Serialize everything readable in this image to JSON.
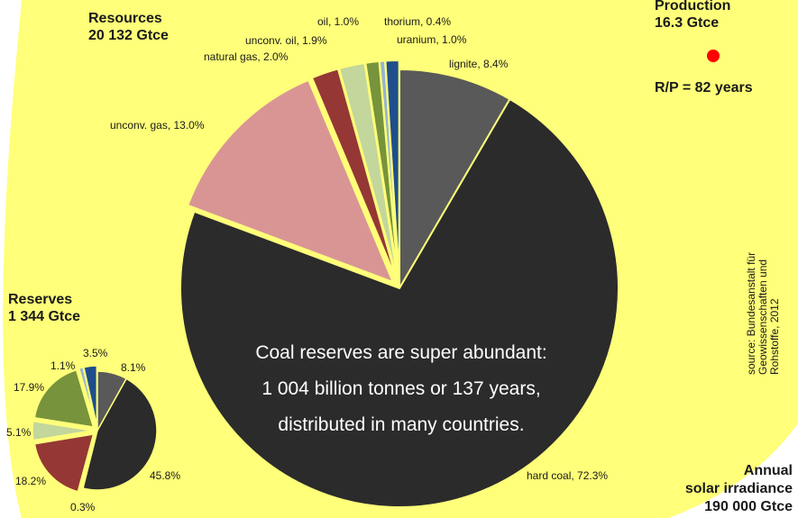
{
  "colors": {
    "background": "#ffff7a",
    "text": "#1a1a1a",
    "dot": "#ff0000"
  },
  "resources": {
    "title": "Resources",
    "total": "20 132 Gtce"
  },
  "reserves": {
    "title": "Reserves",
    "total": "1 344 Gtce"
  },
  "production": {
    "title": "Production",
    "total": "16.3 Gtce",
    "rp": "R/P = 82 years"
  },
  "irradiance": {
    "line1": "Annual",
    "line2": "solar irradiance",
    "line3": "190 000 Gtce"
  },
  "source": {
    "line1": "source: Bundesanstalt für",
    "line2": "Geowissenschaften und",
    "line3": "Rohstoffe, 2012"
  },
  "note": {
    "line1": "Coal reserves are super abundant:",
    "line2": "1 004 billion tonnes or 137 years,",
    "line3": "distributed in many countries."
  },
  "chart_data": [
    {
      "type": "pie",
      "title": "Resources 20 132 Gtce",
      "unit": "%",
      "slices": [
        {
          "label": "lignite",
          "display": "lignite, 8.4%",
          "value": 8.4,
          "color": "#595959",
          "exploded": false
        },
        {
          "label": "hard coal",
          "display": "hard coal, 72.3%",
          "value": 72.3,
          "color": "#2b2b2b",
          "exploded": false
        },
        {
          "label": "unconv. gas",
          "display": "unconv. gas, 13.0%",
          "value": 13.0,
          "color": "#d99594",
          "exploded": true
        },
        {
          "label": "natural gas",
          "display": "natural gas, 2.0%",
          "value": 2.0,
          "color": "#953735",
          "exploded": true
        },
        {
          "label": "unconv. oil",
          "display": "unconv. oil, 1.9%",
          "value": 1.9,
          "color": "#c3d69b",
          "exploded": true
        },
        {
          "label": "oil",
          "display": "oil, 1.0%",
          "value": 1.0,
          "color": "#77933c",
          "exploded": true
        },
        {
          "label": "thorium",
          "display": "thorium, 0.4%",
          "value": 0.4,
          "color": "#95b3d7",
          "exploded": true
        },
        {
          "label": "uranium",
          "display": "uranium, 1.0%",
          "value": 1.0,
          "color": "#1f4e8c",
          "exploded": true
        }
      ]
    },
    {
      "type": "pie",
      "title": "Reserves 1 344 Gtce",
      "unit": "%",
      "slices": [
        {
          "label": "lignite",
          "display": "8.1%",
          "value": 8.1,
          "color": "#595959",
          "exploded": false
        },
        {
          "label": "hard coal",
          "display": "45.8%",
          "value": 45.8,
          "color": "#2b2b2b",
          "exploded": false
        },
        {
          "label": "unconv. gas",
          "display": "0.3%",
          "value": 0.3,
          "color": "#d99594",
          "exploded": true
        },
        {
          "label": "natural gas",
          "display": "18.2%",
          "value": 18.2,
          "color": "#953735",
          "exploded": true
        },
        {
          "label": "unconv. oil",
          "display": "5.1%",
          "value": 5.1,
          "color": "#c3d69b",
          "exploded": true
        },
        {
          "label": "oil",
          "display": "17.9%",
          "value": 17.9,
          "color": "#77933c",
          "exploded": true
        },
        {
          "label": "thorium",
          "display": "1.1%",
          "value": 1.1,
          "color": "#95b3d7",
          "exploded": true
        },
        {
          "label": "uranium",
          "display": "3.5%",
          "value": 3.5,
          "color": "#1f4e8c",
          "exploded": true
        }
      ]
    }
  ]
}
